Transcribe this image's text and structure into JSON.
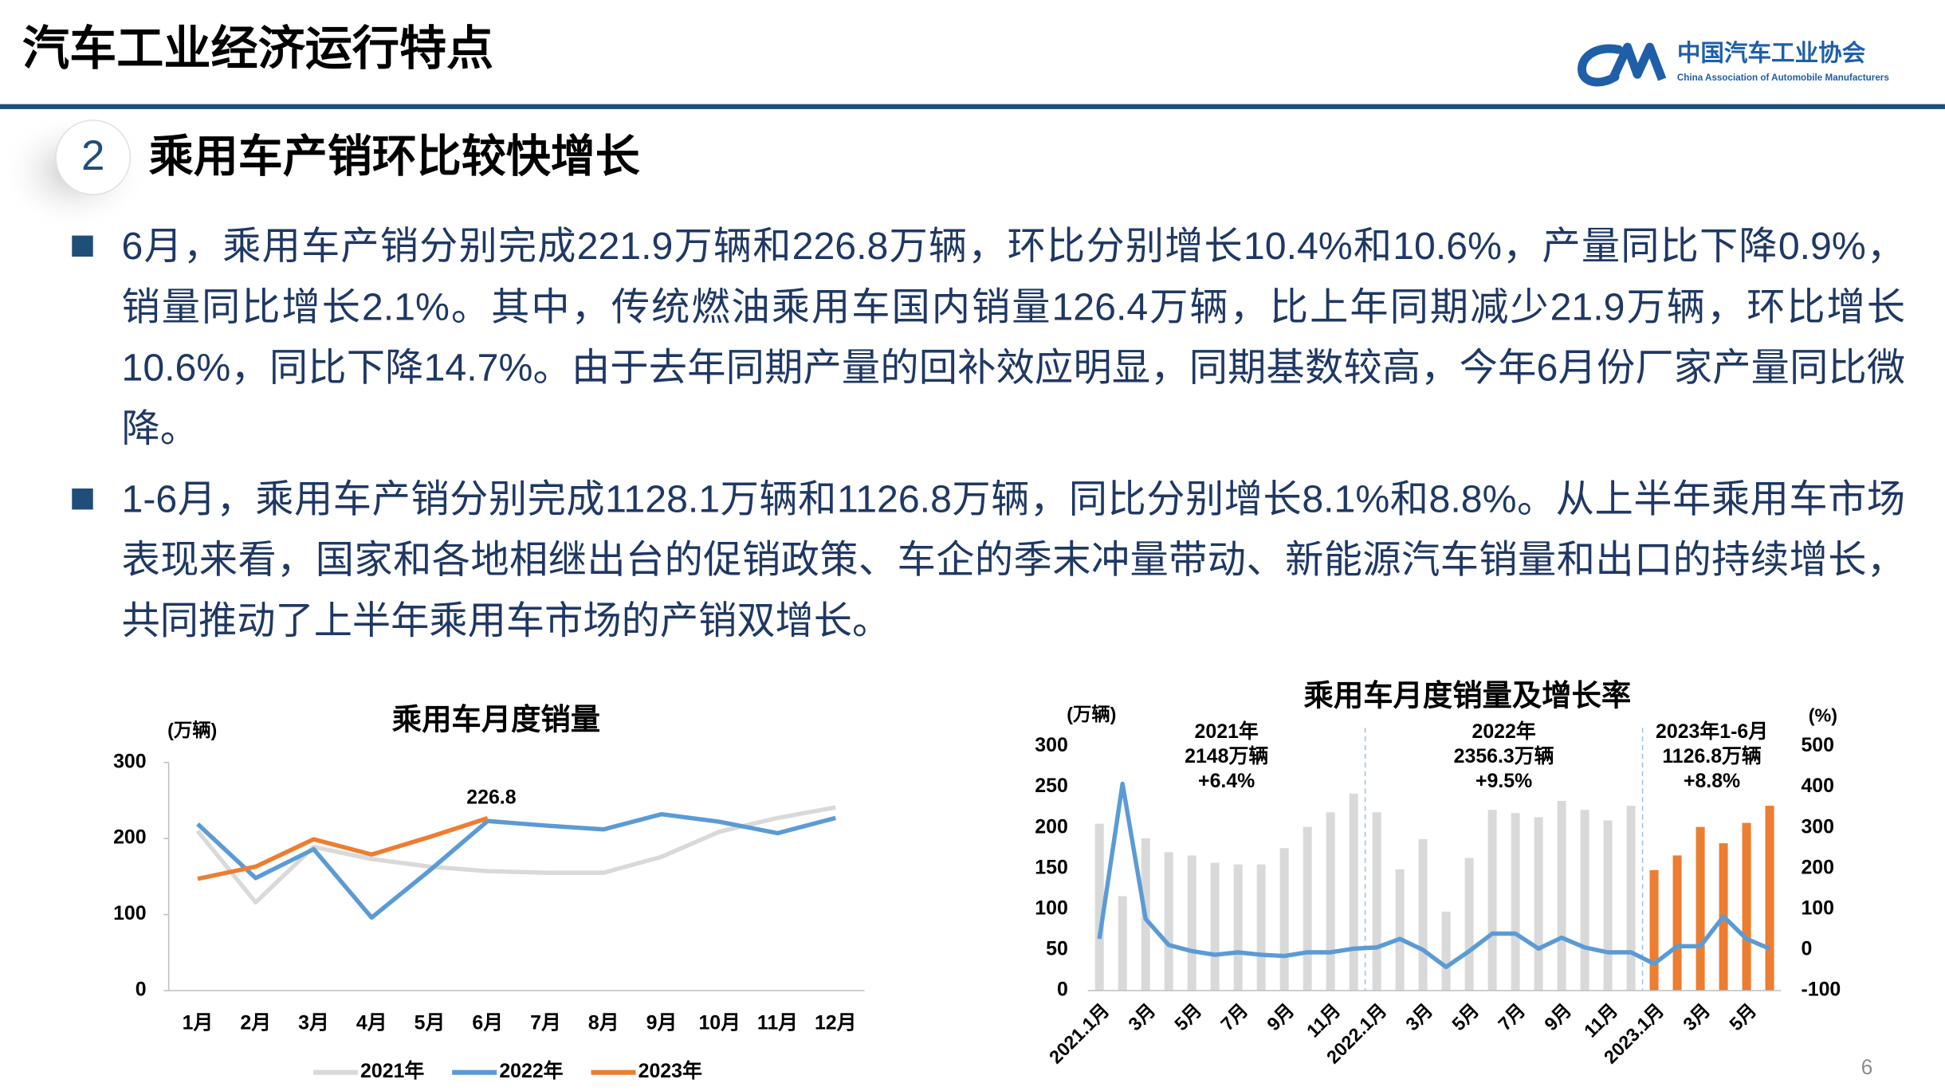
{
  "header": {
    "title": "汽车工业经济运行特点",
    "logo_name": "中国汽车工业协会",
    "logo_subtitle": "China Association of Automobile Manufacturers"
  },
  "section": {
    "number": 2,
    "title": "乘用车产销环比较快增长"
  },
  "bullets": [
    "6月，乘用车产销分别完成221.9万辆和226.8万辆，环比分别增长10.4%和10.6%，产量同比下降0.9%，销量同比增长2.1%。其中，传统燃油乘用车国内销量126.4万辆，比上年同期减少21.9万辆，环比增长10.6%，同比下降14.7%。由于去年同期产量的回补效应明显，同期基数较高，今年6月份厂家产量同比微降。",
    "1-6月，乘用车产销分别完成1128.1万辆和1126.8万辆，同比分别增长8.1%和8.8%。从上半年乘用车市场表现来看，国家和各地相继出台的促销政策、车企的季末冲量带动、新能源汽车销量和出口的持续增长，共同推动了上半年乘用车市场的产销双增长。"
  ],
  "chart_data": [
    {
      "type": "line",
      "title": "乘用车月度销量",
      "y_label": "(万辆)",
      "categories": [
        "1月",
        "2月",
        "3月",
        "4月",
        "5月",
        "6月",
        "7月",
        "8月",
        "9月",
        "10月",
        "11月",
        "12月"
      ],
      "series": [
        {
          "name": "2021年",
          "color": "#d9d9d9",
          "values": [
            210,
            116,
            189,
            173,
            163,
            157,
            155,
            155,
            176,
            209,
            227,
            241
          ]
        },
        {
          "name": "2022年",
          "color": "#5b9bd5",
          "values": [
            219,
            148,
            186,
            96,
            158,
            223,
            217,
            212,
            232,
            222,
            207,
            227
          ]
        },
        {
          "name": "2023年",
          "color": "#ed7d31",
          "values": [
            147,
            163,
            199,
            179,
            202,
            226.8,
            null,
            null,
            null,
            null,
            null,
            null
          ],
          "data_labels": "last"
        }
      ],
      "ylim": [
        0,
        300
      ],
      "yticks": [
        0,
        100,
        200,
        300
      ],
      "legend": "bottom"
    },
    {
      "type": "combo",
      "title": "乘用车月度销量及增长率",
      "y_label": "(万辆)",
      "y2_label": "(%)",
      "categories": [
        "2021.1月",
        null,
        "3月",
        null,
        "5月",
        null,
        "7月",
        null,
        "9月",
        null,
        "11月",
        null,
        "2022.1月",
        null,
        "3月",
        null,
        "5月",
        null,
        "7月",
        null,
        "9月",
        null,
        "11月",
        null,
        "2023.1月",
        null,
        "3月",
        null,
        "5月",
        null
      ],
      "series": [
        {
          "type": "bar",
          "colors": [
            "#d9d9d9",
            "#d9d9d9",
            "#d9d9d9",
            "#d9d9d9",
            "#d9d9d9",
            "#d9d9d9",
            "#d9d9d9",
            "#d9d9d9",
            "#d9d9d9",
            "#d9d9d9",
            "#d9d9d9",
            "#d9d9d9",
            "#d9d9d9",
            "#d9d9d9",
            "#d9d9d9",
            "#d9d9d9",
            "#d9d9d9",
            "#d9d9d9",
            "#d9d9d9",
            "#d9d9d9",
            "#d9d9d9",
            "#d9d9d9",
            "#d9d9d9",
            "#d9d9d9",
            "#ed7d31",
            "#ed7d31",
            "#ed7d31",
            "#ed7d31",
            "#ed7d31",
            "#ed7d31"
          ],
          "values": [
            205,
            116,
            187,
            170,
            166,
            157,
            155,
            155,
            175,
            201,
            219,
            242,
            219,
            149,
            186,
            97,
            163,
            222,
            218,
            213,
            233,
            222,
            209,
            227,
            148,
            166,
            201,
            181,
            206,
            227
          ]
        },
        {
          "type": "line",
          "axis": "y2",
          "color": "#5b9bd5",
          "values": [
            27,
            408,
            76,
            12,
            -3,
            -12,
            -6,
            -12,
            -15,
            -6,
            -6,
            3,
            6,
            27,
            0,
            -42,
            -3,
            40,
            40,
            3,
            30,
            6,
            -6,
            -6,
            -34,
            9,
            9,
            82,
            27,
            3
          ]
        }
      ],
      "ylim": [
        0,
        300
      ],
      "yticks": [
        0,
        50,
        100,
        150,
        200,
        250,
        300
      ],
      "y2lim": [
        -100,
        500
      ],
      "y2ticks": [
        -100,
        0,
        100,
        200,
        300,
        400,
        500
      ],
      "annotations": [
        [
          "2021年",
          "2148万辆",
          "+6.4%"
        ],
        [
          "2022年",
          "2356.3万辆",
          "+9.5%"
        ],
        [
          "2023年1-6月",
          "1126.8万辆",
          "+8.8%"
        ]
      ]
    }
  ],
  "page_number": 6
}
